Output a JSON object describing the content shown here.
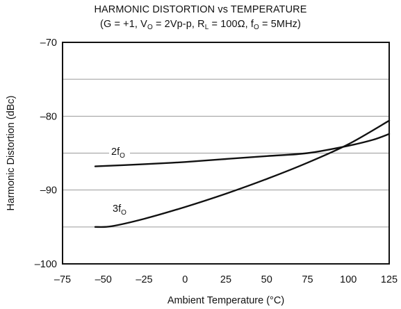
{
  "chart_data": {
    "type": "line",
    "title": "HARMONIC DISTORTION vs TEMPERATURE",
    "subtitle_parts": [
      "(G = +1, V",
      "O",
      " = 2Vp-p, R",
      "L",
      " = 100Ω, f",
      "O",
      " = 5MHz)"
    ],
    "xlabel": "Ambient Temperature (°C)",
    "ylabel": "Harmonic Distortion (dBc)",
    "xlim": [
      -75,
      125
    ],
    "ylim": [
      -100,
      -70
    ],
    "x_ticks": [
      -75,
      -50,
      -25,
      0,
      25,
      50,
      75,
      100,
      125
    ],
    "y_ticks": [
      -70,
      -80,
      -90,
      -100
    ],
    "x_tick_labels": [
      "–75",
      "–50",
      "–25",
      "0",
      "25",
      "50",
      "75",
      "100",
      "125"
    ],
    "y_tick_labels": [
      "–70",
      "–80",
      "–90",
      "–100"
    ],
    "grid": true,
    "series": [
      {
        "name": "2f",
        "name_sub": "O",
        "color": "#111111",
        "x": [
          -55,
          -25,
          0,
          25,
          50,
          75,
          100,
          115,
          125
        ],
        "y": [
          -86.8,
          -86.5,
          -86.2,
          -85.8,
          -85.4,
          -85.0,
          -84.0,
          -83.2,
          -82.4
        ]
      },
      {
        "name": "3f",
        "name_sub": "O",
        "color": "#111111",
        "x": [
          -55,
          -45,
          -25,
          0,
          25,
          50,
          75,
          100,
          125
        ],
        "y": [
          -95.0,
          -94.9,
          -93.9,
          -92.3,
          -90.5,
          -88.5,
          -86.3,
          -83.8,
          -80.6
        ]
      }
    ]
  }
}
